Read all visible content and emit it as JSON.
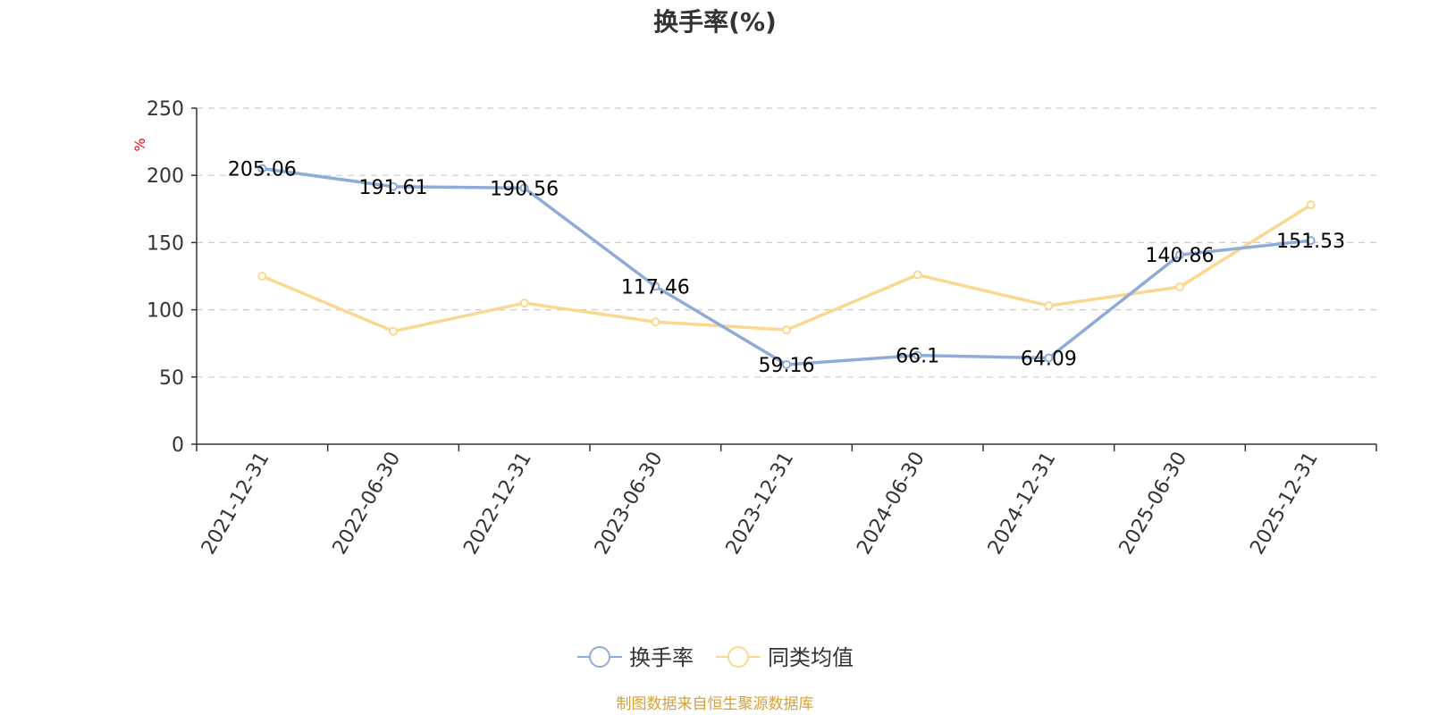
{
  "chart_data": {
    "type": "line",
    "title": "换手率(%)",
    "ylabel": "%",
    "xlabel": "",
    "ylim": [
      0,
      250
    ],
    "yticks": [
      0,
      50,
      100,
      150,
      200,
      250
    ],
    "grid": true,
    "legend_position": "bottom",
    "categories": [
      "2021-12-31",
      "2022-06-30",
      "2022-12-31",
      "2023-06-30",
      "2023-12-31",
      "2024-06-30",
      "2024-12-31",
      "2025-06-30",
      "2025-12-31"
    ],
    "series": [
      {
        "name": "换手率",
        "color": "#8eacd8",
        "values": [
          205.06,
          191.61,
          190.56,
          117.46,
          59.16,
          66.1,
          64.09,
          140.86,
          151.53
        ],
        "labels": [
          "205.06",
          "191.61",
          "190.56",
          "117.46",
          "59.16",
          "66.1",
          "64.09",
          "140.86",
          "151.53"
        ]
      },
      {
        "name": "同类均值",
        "color": "#fad88f",
        "values": [
          125,
          84,
          105,
          91,
          85,
          126,
          103,
          117,
          178
        ]
      }
    ]
  },
  "source": "制图数据来自恒生聚源数据库"
}
